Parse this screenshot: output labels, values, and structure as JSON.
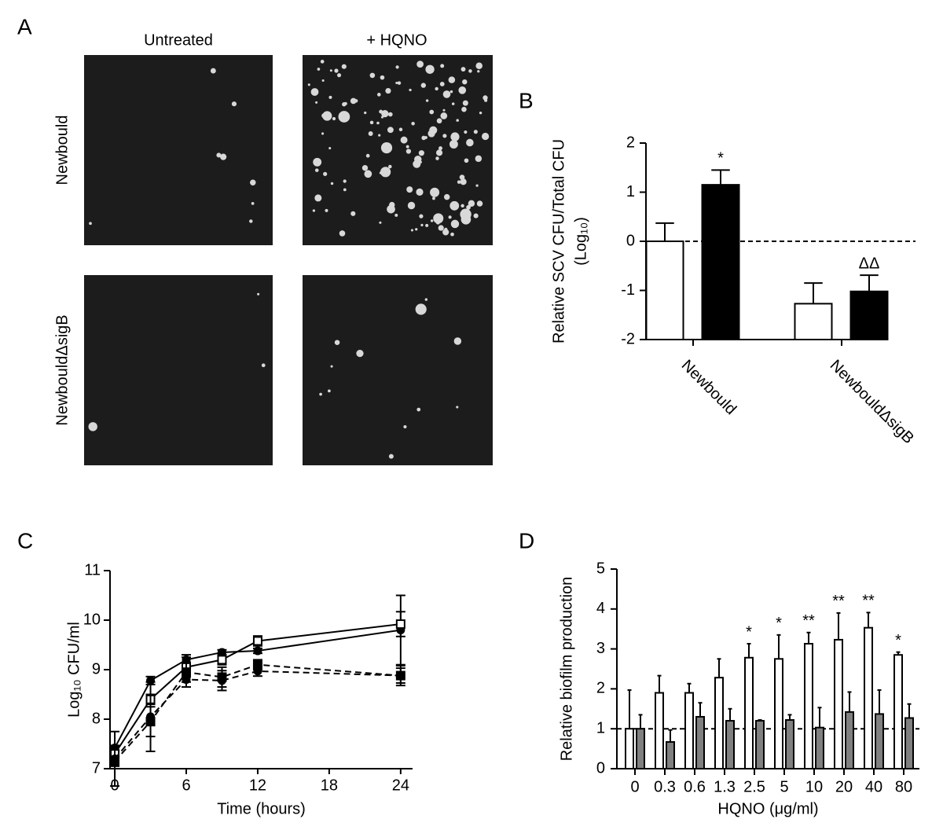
{
  "panel_a": {
    "label": "A",
    "columns": [
      "Untreated",
      "+ HQNO"
    ],
    "rows": [
      "Newbould",
      "NewbouldΔsigB"
    ]
  },
  "chart_data": [
    {
      "type": "bar",
      "label": "B",
      "ylabel_lines": [
        "Relative SCV CFU/Total CFU",
        "(Log₁₀)"
      ],
      "categories": [
        "Newbould",
        "NewbouldΔsigB"
      ],
      "series": [
        {
          "color": "#ffffff",
          "values": [
            0,
            -1.27
          ],
          "errors": [
            0.37,
            0.42
          ]
        },
        {
          "color": "#000000",
          "values": [
            1.15,
            -1.02
          ],
          "errors": [
            0.3,
            0.33
          ]
        }
      ],
      "ylim": [
        -2,
        2
      ],
      "yticks": [
        -2,
        -1,
        0,
        1,
        2
      ],
      "reference_line": 0,
      "annotations": [
        {
          "category": "Newbould",
          "text": "*"
        },
        {
          "category": "NewbouldΔsigB",
          "text": "ΔΔ"
        }
      ]
    },
    {
      "type": "line",
      "label": "C",
      "ylabel_lines": [
        "Log₁₀ CFU/ml"
      ],
      "xlabel": "Time (hours)",
      "x": [
        0,
        3,
        6,
        9,
        12,
        24
      ],
      "series": [
        {
          "dashed": false,
          "marker": "circle",
          "marker_fill": "#000000",
          "values": [
            7.42,
            8.78,
            9.2,
            9.35,
            9.38,
            9.8
          ],
          "errors": [
            0.05,
            0.08,
            0.1,
            0.05,
            0.05,
            0.7
          ]
        },
        {
          "dashed": false,
          "marker": "square",
          "marker_fill": "#ffffff",
          "values": [
            7.3,
            8.4,
            9.05,
            9.2,
            9.58,
            9.92
          ],
          "errors": [
            0.05,
            0.1,
            0.2,
            0.1,
            0.1,
            0.25
          ]
        },
        {
          "dashed": true,
          "marker": "circle",
          "marker_fill": "#000000",
          "values": [
            7.2,
            8.05,
            8.8,
            8.78,
            8.97,
            8.88
          ],
          "errors": [
            0.55,
            0.7,
            0.15,
            0.2,
            0.1,
            0.2
          ]
        },
        {
          "dashed": true,
          "marker": "square",
          "marker_fill": "#000000",
          "values": [
            7.15,
            7.95,
            8.95,
            8.85,
            9.1,
            8.88
          ],
          "errors": [
            0.1,
            0.3,
            0.2,
            0.2,
            0.1,
            0.15
          ]
        }
      ],
      "xlim": [
        -0.4,
        25
      ],
      "xticks": [
        0,
        6,
        12,
        18,
        24
      ],
      "ylim": [
        7,
        11
      ],
      "yticks": [
        7,
        8,
        9,
        10,
        11
      ]
    },
    {
      "type": "bar",
      "label": "D",
      "ylabel_lines": [
        "Relative biofilm production"
      ],
      "xlabel": "HQNO (μg/ml)",
      "categories": [
        "0",
        "0.3",
        "0.6",
        "1.3",
        "2.5",
        "5",
        "10",
        "20",
        "40",
        "80"
      ],
      "series": [
        {
          "color": "#ffffff",
          "values": [
            1,
            1.9,
            1.9,
            2.28,
            2.78,
            2.75,
            3.13,
            3.23,
            3.53,
            2.85
          ],
          "errors": [
            0.97,
            0.43,
            0.23,
            0.47,
            0.35,
            0.6,
            0.28,
            0.67,
            0.38,
            0.07
          ]
        },
        {
          "color": "#808080",
          "values": [
            1,
            0.67,
            1.3,
            1.2,
            1.2,
            1.22,
            1.03,
            1.42,
            1.37,
            1.27
          ],
          "errors": [
            0.35,
            0.3,
            0.35,
            0.3,
            0.02,
            0.13,
            0.5,
            0.5,
            0.6,
            0.35
          ]
        }
      ],
      "ylim": [
        0,
        5
      ],
      "yticks": [
        0,
        1,
        2,
        3,
        4,
        5
      ],
      "reference_line": 1,
      "annotations": [
        {
          "category": "2.5",
          "text": "*"
        },
        {
          "category": "5",
          "text": "*"
        },
        {
          "category": "10",
          "text": "**"
        },
        {
          "category": "20",
          "text": "**"
        },
        {
          "category": "40",
          "text": "**"
        },
        {
          "category": "80",
          "text": "*"
        }
      ]
    }
  ]
}
